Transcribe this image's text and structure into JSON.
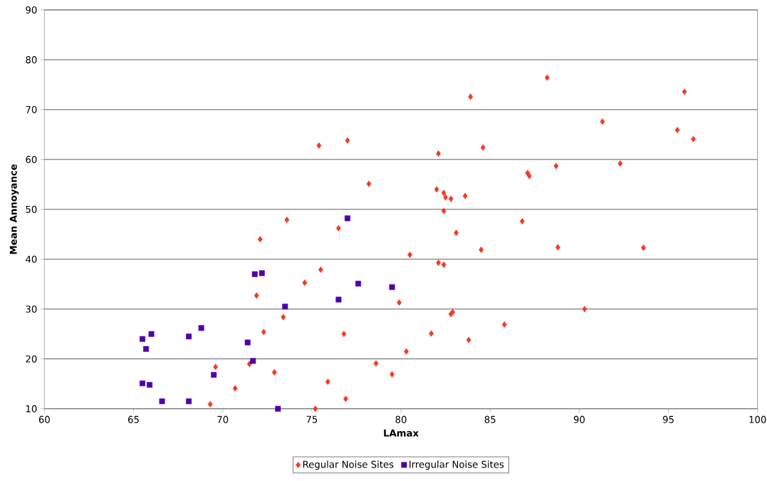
{
  "chart_data": {
    "type": "scatter",
    "xlabel": "LAmax",
    "ylabel": "Mean Annoyance",
    "xlim": [
      60,
      100
    ],
    "ylim": [
      10,
      90
    ],
    "xticks": [
      60,
      65,
      70,
      75,
      80,
      85,
      90,
      95,
      100
    ],
    "yticks": [
      10,
      20,
      30,
      40,
      50,
      60,
      70,
      80,
      90
    ],
    "grid": "y",
    "legend": "bottom",
    "series": [
      {
        "name": "Regular Noise Sites",
        "color": "#f03c28",
        "marker": "diamond",
        "x": [
          88.2,
          83.9,
          95.9,
          91.3,
          95.5,
          96.4,
          75.4,
          77.0,
          84.6,
          82.1,
          87.1,
          87.2,
          88.7,
          92.3,
          78.2,
          82.0,
          82.4,
          82.5,
          82.8,
          83.6,
          82.4,
          83.1,
          73.6,
          76.5,
          72.1,
          86.8,
          84.5,
          88.8,
          93.6,
          80.5,
          82.1,
          82.4,
          75.5,
          74.6,
          71.9,
          79.9,
          82.8,
          82.9,
          90.3,
          73.4,
          85.8,
          72.3,
          76.8,
          81.7,
          83.8,
          80.3,
          69.6,
          71.5,
          72.9,
          78.6,
          79.5,
          70.7,
          75.9,
          76.9,
          69.3,
          75.2
        ],
        "values": [
          76.4,
          72.6,
          73.6,
          67.6,
          65.9,
          64.1,
          62.8,
          63.8,
          62.4,
          61.2,
          57.3,
          56.7,
          58.7,
          59.2,
          55.1,
          54.0,
          53.3,
          52.4,
          52.1,
          52.7,
          49.7,
          45.3,
          47.9,
          46.2,
          44.0,
          47.6,
          41.9,
          42.4,
          42.3,
          40.9,
          39.3,
          38.9,
          37.9,
          35.3,
          32.7,
          31.3,
          29.0,
          29.4,
          30.0,
          28.4,
          26.9,
          25.4,
          25.0,
          25.1,
          23.8,
          21.5,
          18.4,
          19.0,
          17.3,
          19.1,
          16.9,
          14.1,
          15.4,
          12.0,
          10.9,
          10.0
        ]
      },
      {
        "name": "Irregular Noise Sites",
        "color": "#5000a8",
        "marker": "square",
        "x": [
          77.0,
          71.8,
          72.2,
          77.6,
          79.5,
          73.5,
          76.5,
          68.8,
          65.5,
          66.0,
          68.1,
          65.7,
          71.4,
          71.7,
          69.5,
          65.5,
          65.9,
          66.6,
          68.1,
          73.1
        ],
        "values": [
          48.2,
          37.0,
          37.2,
          35.1,
          34.4,
          30.5,
          31.9,
          26.2,
          24.0,
          25.0,
          24.5,
          22.0,
          23.3,
          19.6,
          16.8,
          15.1,
          14.8,
          11.5,
          11.5,
          10.0
        ]
      }
    ]
  }
}
